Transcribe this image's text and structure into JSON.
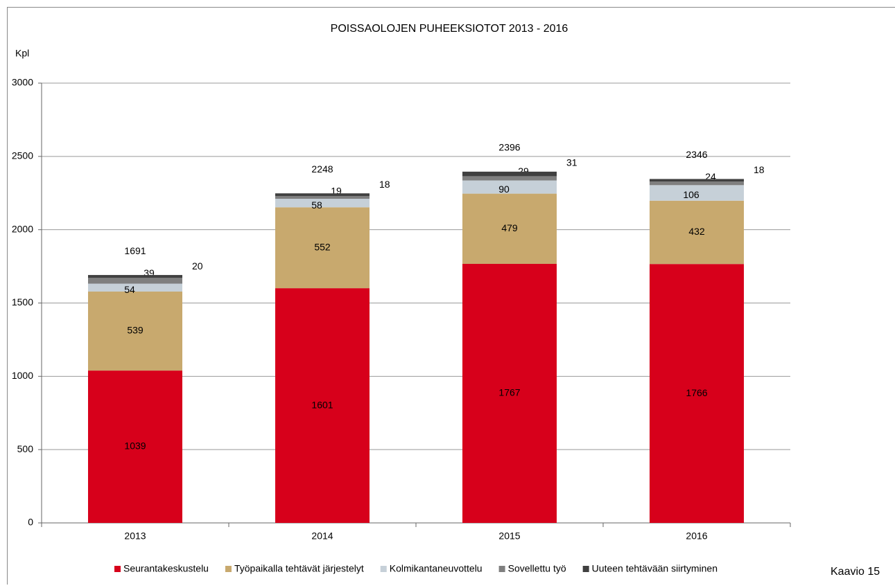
{
  "chart_data": {
    "type": "stacked_bar",
    "title": "POISSAOLOJEN PUHEEKSIOTOT 2013 - 2016",
    "y_label": "Kpl",
    "caption": "Kaavio 15",
    "categories": [
      "2013",
      "2014",
      "2015",
      "2016"
    ],
    "series": [
      {
        "name": "Seurantakeskustelu",
        "color": "#d7001b",
        "values": [
          1039,
          1601,
          1767,
          1766
        ]
      },
      {
        "name": "Työpaikalla tehtävät järjestelyt",
        "color": "#c8a96e",
        "values": [
          539,
          552,
          479,
          432
        ]
      },
      {
        "name": "Kolmikantaneuvottelu",
        "color": "#c6d0d8",
        "values": [
          54,
          58,
          90,
          106
        ]
      },
      {
        "name": "Sovellettu työ",
        "color": "#7f7f7f",
        "values": [
          39,
          19,
          29,
          24
        ]
      },
      {
        "name": "Uuteen tehtävään siirtyminen",
        "color": "#404040",
        "values": [
          20,
          18,
          31,
          18
        ]
      }
    ],
    "totals": [
      1691,
      2248,
      2396,
      2346
    ],
    "ylim": [
      0,
      3000
    ],
    "yticks": [
      0,
      500,
      1000,
      1500,
      2000,
      2500,
      3000
    ],
    "grid": true,
    "legend": "bottom"
  }
}
